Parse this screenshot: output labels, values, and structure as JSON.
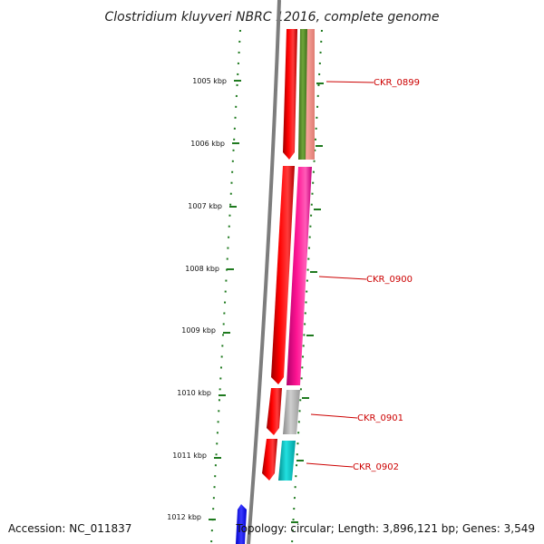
{
  "title": "Clostridium kluyveri NBRC 12016, complete genome",
  "footer": {
    "accession": "Accession: NC_011837",
    "topology": "Topology: circular; Length: 3,896,121 bp; Genes: 3,549"
  },
  "colors": {
    "backbone": "#7d7d7d",
    "tick": "#1f7a1f",
    "label": "#cc0000",
    "plus_strand": "#ff0000",
    "partial_gene": "#1a1aff"
  },
  "ticks": [
    "1005 kbp",
    "1006 kbp",
    "1007 kbp",
    "1008 kbp",
    "1009 kbp",
    "1010 kbp",
    "1011 kbp",
    "1012 kbp"
  ],
  "genes": [
    {
      "label": "CKR_0899",
      "color": "#f08c84"
    },
    {
      "label": "CKR_0900",
      "color": "#ff1493"
    },
    {
      "label": "CKR_0901",
      "color": "#b8b8b8"
    },
    {
      "label": "CKR_0902",
      "color": "#00c8c8"
    }
  ],
  "features": [
    {
      "name": "green-feature",
      "color": "#5b8e2d"
    }
  ]
}
